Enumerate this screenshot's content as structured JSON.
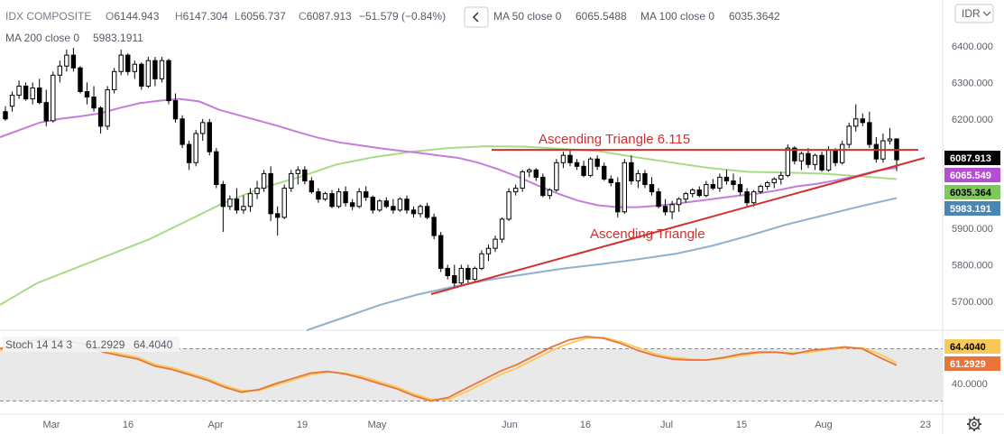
{
  "header": {
    "symbol": "IDX COMPOSITE",
    "ohlc": [
      {
        "label": "O",
        "value": "6144.943"
      },
      {
        "label": "H",
        "value": "6147.304"
      },
      {
        "label": "L",
        "value": "6056.737"
      },
      {
        "label": "C",
        "value": "6087.913"
      }
    ],
    "change": "−51.579 (−0.84%)",
    "collapse_icon": "chevron-left-icon",
    "indicators": [
      {
        "label": "MA 50 close 0",
        "value": "6065.5488",
        "color": "#b34fd1"
      },
      {
        "label": "MA 100 close 0",
        "value": "6035.3642",
        "color": "#7fc95b"
      },
      {
        "label": "MA 200 close 0",
        "value": "5983.1911",
        "color": "#4a86b4"
      }
    ]
  },
  "currency_button": "IDR",
  "settings_icon": "gear-icon",
  "stoch": {
    "label": "Stoch 14 14 3",
    "k_value": "61.2929",
    "d_value": "64.4040",
    "k_color": "#e8743b",
    "d_color": "#f7c95a"
  },
  "chart_data": [
    {
      "type": "candlestick",
      "title": "IDX COMPOSITE",
      "currency": "IDR",
      "ylim": [
        5620,
        6500
      ],
      "y_ticks": [
        "6400.000",
        "6300.000",
        "6200.000",
        "6100.000",
        "5900.000",
        "5800.000",
        "5700.000"
      ],
      "x_ticks": [
        "Mar",
        "16",
        "Apr",
        "19",
        "May",
        "Jun",
        "16",
        "Jul",
        "15",
        "Aug",
        "23"
      ],
      "grid": false,
      "candles": [
        [
          6220,
          6235,
          6195,
          6200
        ],
        [
          6235,
          6275,
          6220,
          6265
        ],
        [
          6265,
          6305,
          6255,
          6290
        ],
        [
          6290,
          6300,
          6250,
          6255
        ],
        [
          6255,
          6300,
          6240,
          6285
        ],
        [
          6285,
          6310,
          6240,
          6245
        ],
        [
          6245,
          6280,
          6180,
          6195
        ],
        [
          6195,
          6330,
          6190,
          6320
        ],
        [
          6320,
          6360,
          6300,
          6345
        ],
        [
          6345,
          6390,
          6330,
          6375
        ],
        [
          6375,
          6395,
          6330,
          6340
        ],
        [
          6340,
          6345,
          6270,
          6275
        ],
        [
          6275,
          6300,
          6240,
          6260
        ],
        [
          6260,
          6290,
          6220,
          6230
        ],
        [
          6230,
          6235,
          6160,
          6180
        ],
        [
          6180,
          6290,
          6170,
          6280
        ],
        [
          6280,
          6340,
          6270,
          6330
        ],
        [
          6330,
          6390,
          6320,
          6375
        ],
        [
          6375,
          6380,
          6320,
          6330
        ],
        [
          6330,
          6360,
          6310,
          6350
        ],
        [
          6350,
          6355,
          6280,
          6290
        ],
        [
          6290,
          6370,
          6285,
          6360
        ],
        [
          6360,
          6370,
          6290,
          6310
        ],
        [
          6310,
          6370,
          6300,
          6360
        ],
        [
          6360,
          6365,
          6240,
          6250
        ],
        [
          6250,
          6270,
          6190,
          6200
        ],
        [
          6200,
          6210,
          6120,
          6130
        ],
        [
          6130,
          6140,
          6060,
          6080
        ],
        [
          6080,
          6170,
          6070,
          6160
        ],
        [
          6160,
          6200,
          6140,
          6190
        ],
        [
          6190,
          6200,
          6100,
          6110
        ],
        [
          6110,
          6120,
          6010,
          6020
        ],
        [
          6020,
          6030,
          5890,
          5960
        ],
        [
          5960,
          5990,
          5950,
          5980
        ],
        [
          5980,
          6010,
          5940,
          5950
        ],
        [
          5950,
          5990,
          5940,
          5960
        ],
        [
          5960,
          6010,
          5945,
          5995
        ],
        [
          5995,
          6030,
          5980,
          6010
        ],
        [
          6010,
          6060,
          6000,
          6050
        ],
        [
          6050,
          6070,
          5920,
          5940
        ],
        [
          5940,
          5960,
          5880,
          5930
        ],
        [
          5930,
          6020,
          5925,
          6010
        ],
        [
          6010,
          6060,
          6000,
          6050
        ],
        [
          6050,
          6070,
          6020,
          6060
        ],
        [
          6060,
          6070,
          6020,
          6030
        ],
        [
          6030,
          6040,
          5995,
          6000
        ],
        [
          6000,
          6010,
          5970,
          5980
        ],
        [
          5980,
          6000,
          5975,
          5995
        ],
        [
          5995,
          6005,
          5955,
          5960
        ],
        [
          5960,
          6010,
          5955,
          6000
        ],
        [
          6000,
          6015,
          5960,
          5970
        ],
        [
          5970,
          5980,
          5950,
          5960
        ],
        [
          5960,
          6010,
          5955,
          6000
        ],
        [
          6000,
          6015,
          5975,
          5985
        ],
        [
          5985,
          5990,
          5940,
          5950
        ],
        [
          5950,
          5980,
          5945,
          5975
        ],
        [
          5975,
          5985,
          5955,
          5960
        ],
        [
          5960,
          5980,
          5940,
          5950
        ],
        [
          5950,
          5985,
          5945,
          5980
        ],
        [
          5980,
          5990,
          5940,
          5950
        ],
        [
          5950,
          5960,
          5930,
          5940
        ],
        [
          5940,
          5965,
          5930,
          5960
        ],
        [
          5960,
          5970,
          5925,
          5930
        ],
        [
          5930,
          5940,
          5870,
          5880
        ],
        [
          5880,
          5890,
          5780,
          5790
        ],
        [
          5790,
          5800,
          5760,
          5770
        ],
        [
          5770,
          5800,
          5740,
          5750
        ],
        [
          5750,
          5800,
          5745,
          5790
        ],
        [
          5790,
          5800,
          5750,
          5760
        ],
        [
          5760,
          5795,
          5755,
          5790
        ],
        [
          5790,
          5840,
          5785,
          5830
        ],
        [
          5830,
          5855,
          5810,
          5845
        ],
        [
          5845,
          5880,
          5835,
          5870
        ],
        [
          5870,
          5930,
          5860,
          5925
        ],
        [
          5925,
          6010,
          5920,
          6000
        ],
        [
          6000,
          6020,
          5990,
          6010
        ],
        [
          6010,
          6060,
          6000,
          6055
        ],
        [
          6055,
          6065,
          6040,
          6060
        ],
        [
          6060,
          6065,
          6030,
          6040
        ],
        [
          6040,
          6050,
          5985,
          5990
        ],
        [
          5990,
          6010,
          5980,
          6005
        ],
        [
          6005,
          6090,
          6000,
          6080
        ],
        [
          6080,
          6110,
          6065,
          6100
        ],
        [
          6100,
          6115,
          6070,
          6080
        ],
        [
          6080,
          6090,
          6060,
          6070
        ],
        [
          6070,
          6085,
          6040,
          6045
        ],
        [
          6045,
          6095,
          6040,
          6090
        ],
        [
          6090,
          6100,
          6060,
          6070
        ],
        [
          6070,
          6080,
          6030,
          6035
        ],
        [
          6035,
          6045,
          6015,
          6025
        ],
        [
          6025,
          6040,
          5930,
          5945
        ],
        [
          5945,
          6090,
          5940,
          6080
        ],
        [
          6080,
          6100,
          6020,
          6030
        ],
        [
          6030,
          6060,
          6010,
          6050
        ],
        [
          6050,
          6060,
          6010,
          6020
        ],
        [
          6020,
          6040,
          5990,
          6000
        ],
        [
          6000,
          6010,
          5955,
          5960
        ],
        [
          5960,
          5980,
          5935,
          5945
        ],
        [
          5945,
          5975,
          5925,
          5965
        ],
        [
          5965,
          5985,
          5945,
          5980
        ],
        [
          5980,
          6000,
          5970,
          5995
        ],
        [
          5995,
          6010,
          5985,
          6005
        ],
        [
          6005,
          6015,
          5985,
          5990
        ],
        [
          5990,
          6030,
          5985,
          6020
        ],
        [
          6020,
          6035,
          6005,
          6010
        ],
        [
          6010,
          6050,
          6000,
          6040
        ],
        [
          6040,
          6060,
          6020,
          6030
        ],
        [
          6030,
          6050,
          6005,
          6020
        ],
        [
          6020,
          6040,
          5990,
          6000
        ],
        [
          6000,
          6010,
          5960,
          5970
        ],
        [
          5970,
          6005,
          5960,
          6000
        ],
        [
          6000,
          6020,
          5995,
          6015
        ],
        [
          6015,
          6030,
          6005,
          6025
        ],
        [
          6025,
          6040,
          6010,
          6035
        ],
        [
          6035,
          6055,
          6020,
          6045
        ],
        [
          6045,
          6130,
          6040,
          6120
        ],
        [
          6120,
          6125,
          6075,
          6085
        ],
        [
          6085,
          6110,
          6060,
          6105
        ],
        [
          6105,
          6120,
          6065,
          6075
        ],
        [
          6075,
          6105,
          6060,
          6100
        ],
        [
          6100,
          6110,
          6055,
          6060
        ],
        [
          6060,
          6125,
          6055,
          6115
        ],
        [
          6115,
          6120,
          6070,
          6080
        ],
        [
          6080,
          6140,
          6075,
          6130
        ],
        [
          6130,
          6190,
          6120,
          6180
        ],
        [
          6180,
          6240,
          6165,
          6200
        ],
        [
          6200,
          6215,
          6180,
          6190
        ],
        [
          6190,
          6220,
          6120,
          6130
        ],
        [
          6130,
          6150,
          6080,
          6090
        ],
        [
          6090,
          6160,
          6080,
          6140
        ],
        [
          6140,
          6175,
          6130,
          6145
        ],
        [
          6145,
          6147,
          6057,
          6088
        ]
      ],
      "ma50": [
        6150,
        6170,
        6190,
        6200,
        6207,
        6215,
        6230,
        6243,
        6250,
        6255,
        6248,
        6225,
        6210,
        6195,
        6180,
        6163,
        6148,
        6136,
        6128,
        6120,
        6113,
        6107,
        6100,
        6093,
        6080,
        6062,
        6041,
        6017,
        5995,
        5976,
        5963,
        5958,
        5958,
        5962,
        5968,
        5975,
        5982,
        5989,
        5995,
        6004,
        6015,
        6022,
        6032,
        6044,
        6058,
        6066
      ],
      "ma100": [
        5690,
        5750,
        5790,
        5830,
        5870,
        5920,
        5970,
        6010,
        6040,
        6075,
        6095,
        6110,
        6120,
        6125,
        6124,
        6118,
        6112,
        6095,
        6080,
        6065,
        6055,
        6053,
        6050,
        6043,
        6035
      ],
      "ma200": [
        5620,
        5655,
        5690,
        5718,
        5740,
        5760,
        5775,
        5790,
        5802,
        5815,
        5830,
        5852,
        5880,
        5910,
        5935,
        5960,
        5983
      ],
      "annotations": [
        "Ascending Triangle  6.115",
        "Ascending Triangle"
      ],
      "resistance": 6115,
      "price_tags": [
        {
          "value": "6087.913",
          "bg": "#000000",
          "fg": "#ffffff"
        },
        {
          "value": "6065.549",
          "bg": "#b34fd1",
          "fg": "#ffffff"
        },
        {
          "value": "6035.364",
          "bg": "#7fc95b",
          "fg": "#000000"
        },
        {
          "value": "5983.191",
          "bg": "#4a86b4",
          "fg": "#ffffff"
        }
      ]
    },
    {
      "type": "line",
      "title": "Stoch 14 14 3",
      "ylim": [
        10,
        95
      ],
      "bands": [
        80,
        20
      ],
      "y_ticks": [
        "40.0000"
      ],
      "series": [
        {
          "name": "61.2929",
          "color": "#e8743b",
          "values": [
            80,
            86,
            90,
            91,
            89,
            84,
            76,
            72,
            68,
            60,
            56,
            50,
            44,
            36,
            30,
            33,
            40,
            46,
            52,
            54,
            51,
            46,
            40,
            34,
            26,
            20,
            24,
            34,
            44,
            54,
            62,
            72,
            82,
            90,
            94,
            92,
            86,
            78,
            72,
            68,
            67,
            67,
            70,
            74,
            76,
            76,
            74,
            78,
            80,
            82,
            80,
            70,
            61
          ]
        },
        {
          "name": "64.4040",
          "color": "#f7c95a",
          "values": [
            78,
            83,
            88,
            90,
            88,
            86,
            78,
            74,
            70,
            62,
            58,
            52,
            46,
            38,
            32,
            32,
            38,
            44,
            50,
            53,
            52,
            48,
            42,
            36,
            28,
            22,
            22,
            30,
            40,
            50,
            58,
            68,
            78,
            86,
            92,
            93,
            88,
            81,
            74,
            70,
            68,
            67,
            69,
            72,
            75,
            76,
            75,
            76,
            79,
            81,
            81,
            74,
            64
          ]
        }
      ],
      "price_tags": [
        {
          "value": "64.4040",
          "bg": "#f7c95a",
          "fg": "#000000"
        },
        {
          "value": "61.2929",
          "bg": "#e8743b",
          "fg": "#ffffff"
        }
      ]
    }
  ]
}
